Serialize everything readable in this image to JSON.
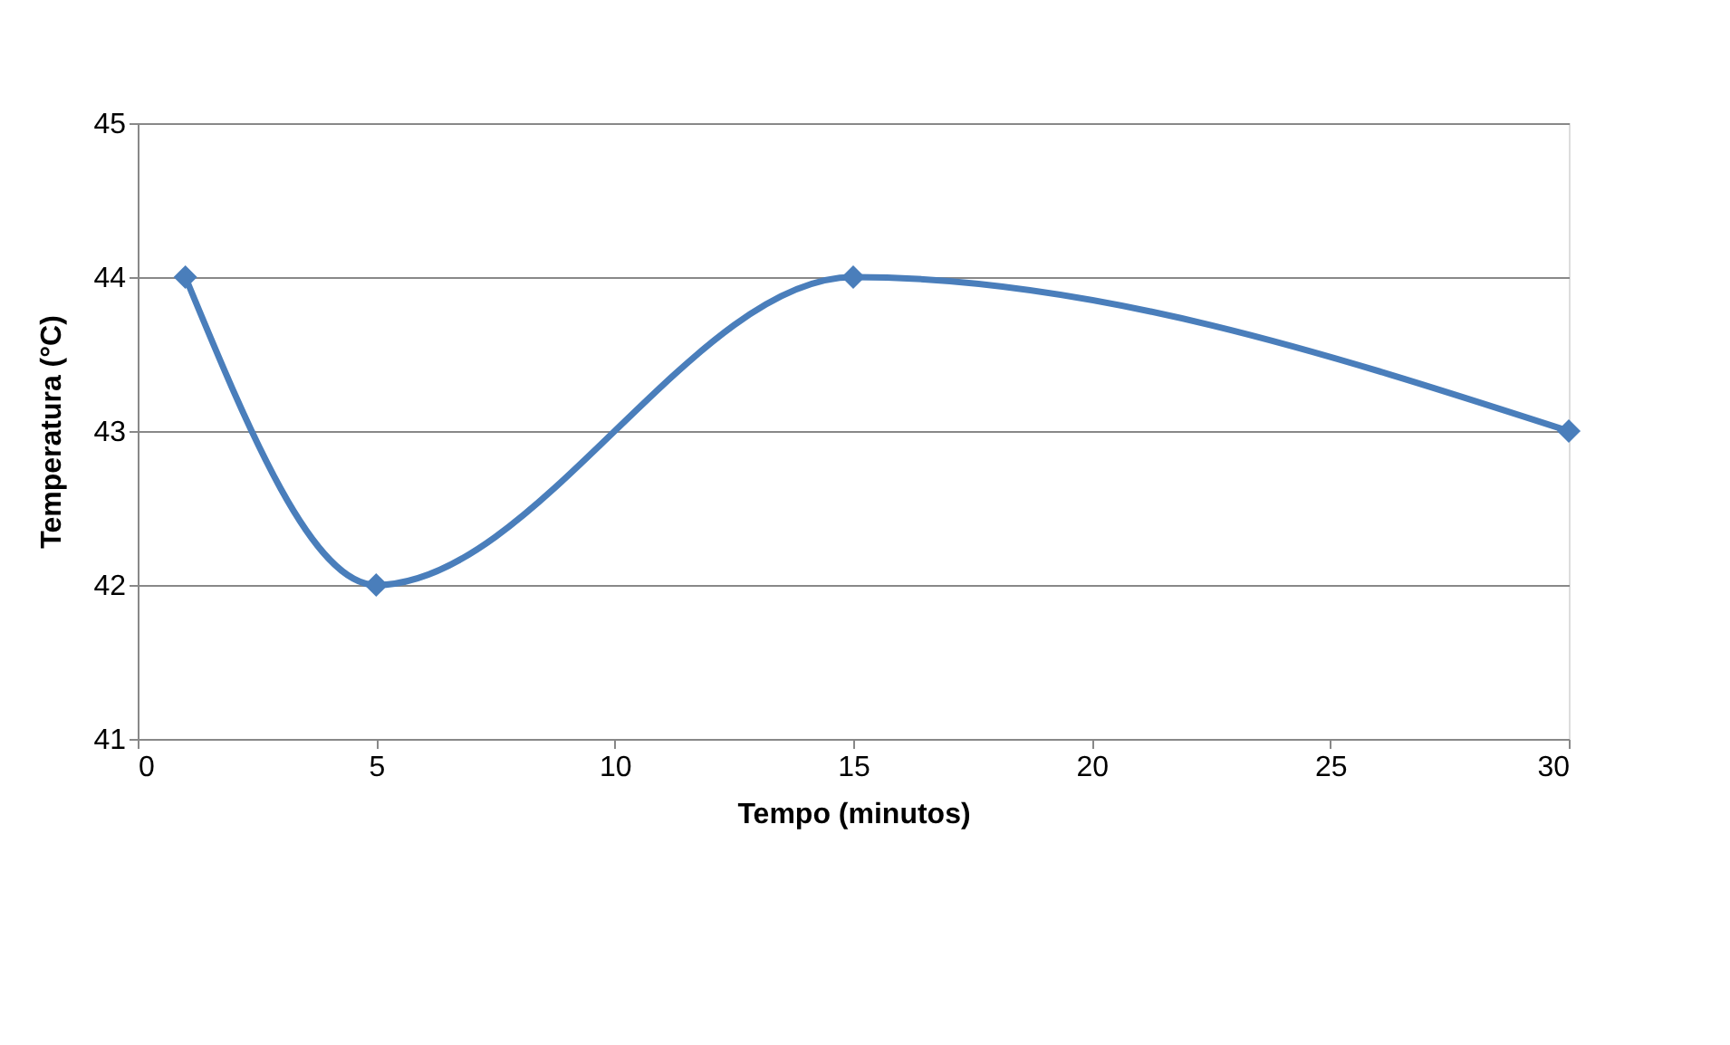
{
  "chart_data": {
    "type": "line",
    "xlabel": "Tempo (minutos)",
    "ylabel": "Temperatura (°C)",
    "x": [
      1,
      5,
      15,
      30
    ],
    "series": [
      {
        "color": "#4a7ebb",
        "values": [
          44,
          42,
          44,
          43
        ]
      }
    ],
    "xlim": [
      0,
      30
    ],
    "xticks": [
      0,
      5,
      10,
      15,
      20,
      25,
      30
    ],
    "ylim": [
      41,
      45
    ],
    "yticks": [
      41,
      42,
      43,
      44,
      45
    ],
    "grid": "y",
    "marker": "diamond"
  }
}
